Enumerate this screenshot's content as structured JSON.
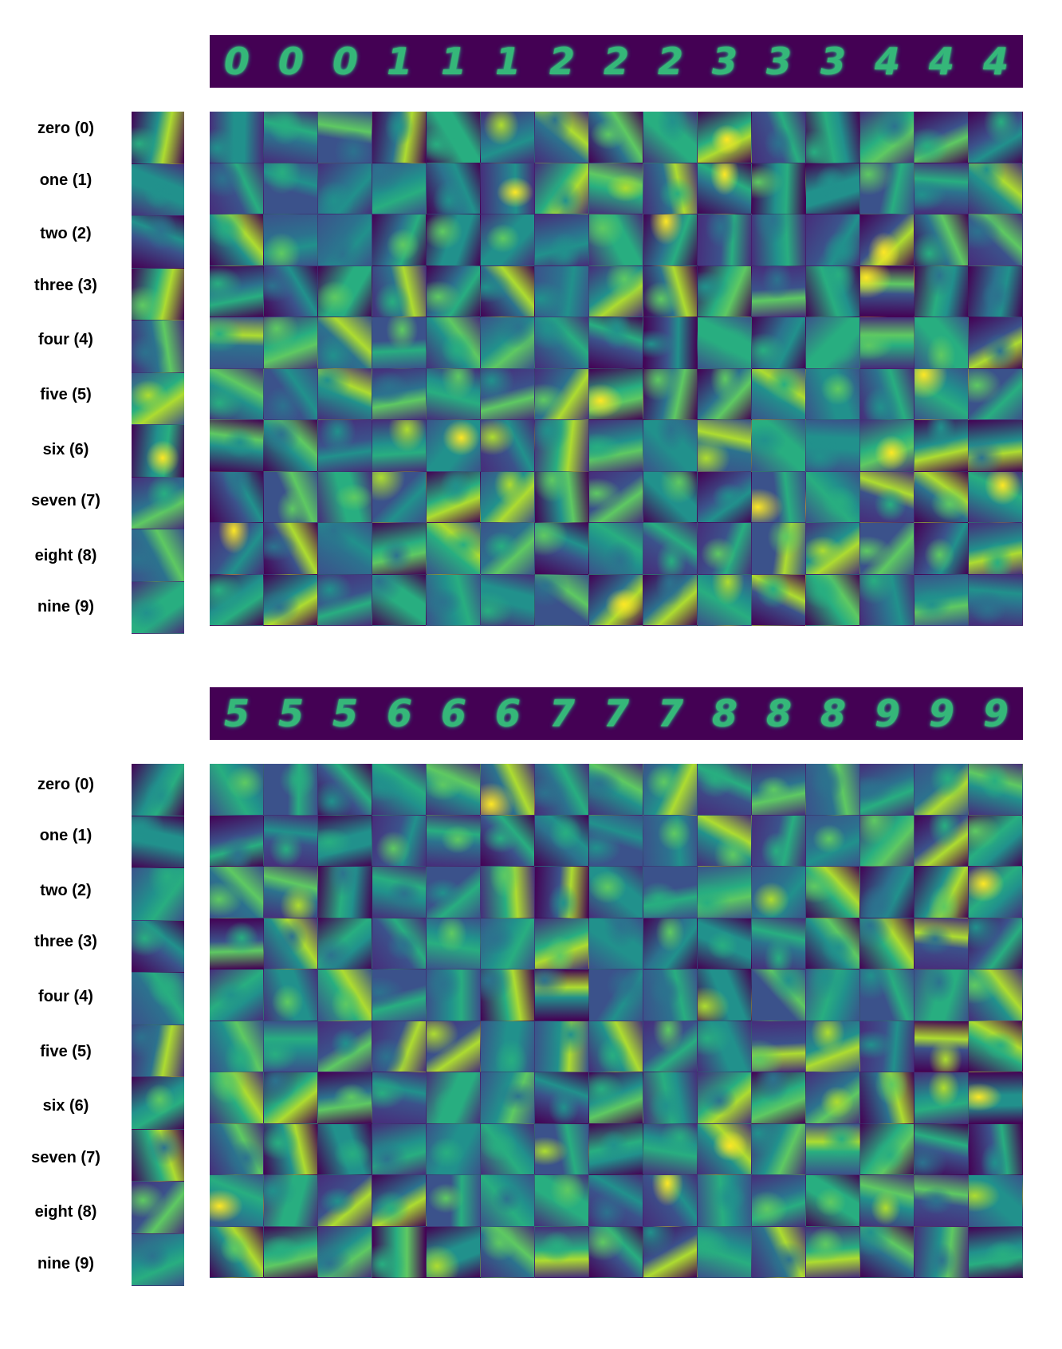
{
  "panels": [
    {
      "digits": [
        "0",
        "0",
        "0",
        "1",
        "1",
        "1",
        "2",
        "2",
        "2",
        "3",
        "3",
        "3",
        "4",
        "4",
        "4"
      ],
      "row_labels": [
        "zero (0)",
        "one (1)",
        "two (2)",
        "three (3)",
        "four (4)",
        "five (5)",
        "six (6)",
        "seven (7)",
        "eight (8)",
        "nine (9)"
      ]
    },
    {
      "digits": [
        "5",
        "5",
        "5",
        "6",
        "6",
        "6",
        "7",
        "7",
        "7",
        "8",
        "8",
        "8",
        "9",
        "9",
        "9"
      ],
      "row_labels": [
        "zero (0)",
        "one (1)",
        "two (2)",
        "three (3)",
        "four (4)",
        "five (5)",
        "six (6)",
        "seven (7)",
        "eight (8)",
        "nine (9)"
      ]
    }
  ],
  "colors": {
    "strip_bg": "#440154",
    "viridis": [
      "#440154",
      "#472d7b",
      "#3b528b",
      "#2c728e",
      "#21918c",
      "#28ae80",
      "#5ec962",
      "#addc30",
      "#fde725"
    ]
  }
}
